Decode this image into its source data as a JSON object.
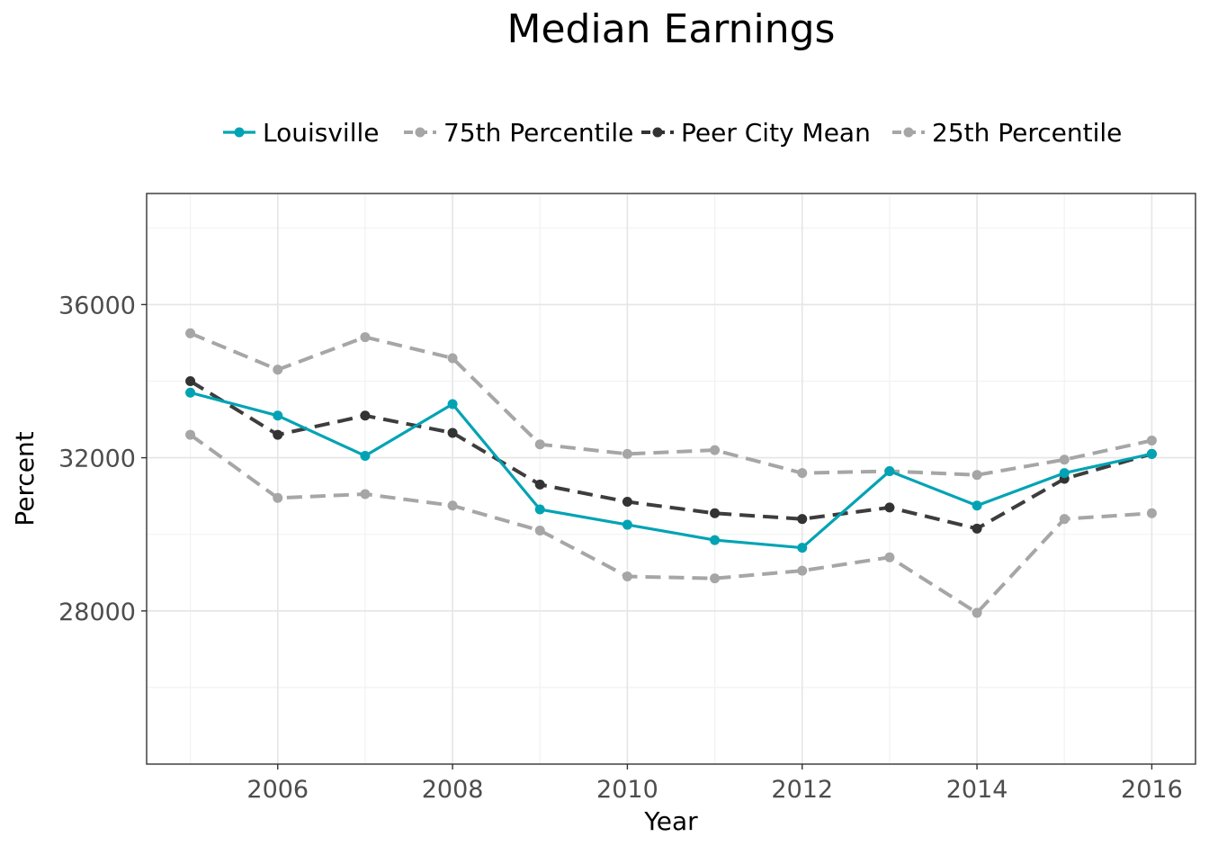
{
  "chart_data": {
    "type": "line",
    "title": "Median Earnings",
    "xlabel": "Year",
    "ylabel": "Percent",
    "x": [
      2005,
      2006,
      2007,
      2008,
      2009,
      2010,
      2011,
      2012,
      2013,
      2014,
      2015,
      2016
    ],
    "xlim": [
      2004.5,
      2016.5
    ],
    "ylim": [
      24000,
      38900
    ],
    "xticks": [
      "2006",
      "2008",
      "2010",
      "2012",
      "2014",
      "2016"
    ],
    "yticks": [
      "28000",
      "32000",
      "36000"
    ],
    "grid": true,
    "legend_position": "top",
    "series": [
      {
        "name": "Louisville",
        "color": "#00a3b4",
        "style": "solid",
        "values": [
          33700,
          33100,
          32050,
          33400,
          30650,
          30250,
          29850,
          29650,
          31650,
          30750,
          31600,
          32100
        ]
      },
      {
        "name": "75th Percentile",
        "color": "#a6a6a6",
        "style": "dashed",
        "values": [
          35250,
          34300,
          35150,
          34600,
          32350,
          32100,
          32200,
          31600,
          31650,
          31550,
          31950,
          32450
        ]
      },
      {
        "name": "Peer City Mean",
        "color": "#333333",
        "style": "dashed",
        "values": [
          34000,
          32600,
          33100,
          32650,
          31300,
          30850,
          30550,
          30400,
          30700,
          30150,
          31450,
          32100
        ]
      },
      {
        "name": "25th Percentile",
        "color": "#a6a6a6",
        "style": "dashed",
        "values": [
          32600,
          30950,
          31050,
          30750,
          30100,
          28900,
          28850,
          29050,
          29400,
          27950,
          30400,
          30550
        ]
      }
    ]
  }
}
